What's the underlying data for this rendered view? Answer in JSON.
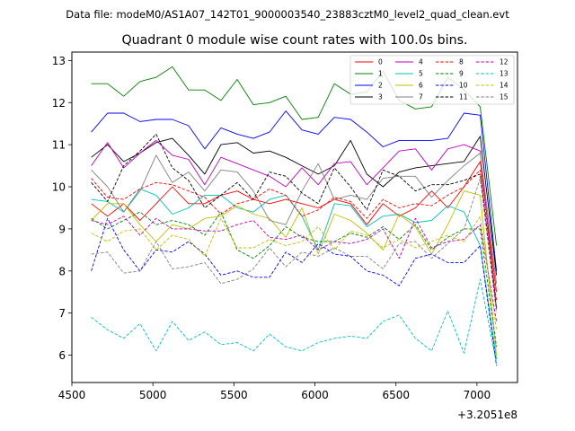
{
  "suptitle": "Data file: modeM0/AS1A07_142T01_9000003540_23883cztM0_level2_quad_clean.evt",
  "chart_data": {
    "type": "line",
    "title": "Quadrant 0 module wise count rates with 100.0s bins.",
    "xlabel": "",
    "ylabel": "",
    "offset_label": "+3.2051e8",
    "xlim": [
      4500,
      7250
    ],
    "ylim": [
      5.35,
      13.2
    ],
    "xticks": [
      4500,
      5000,
      5500,
      6000,
      6500,
      7000
    ],
    "xtick_labels": [
      "4500",
      "5000",
      "5500",
      "6000",
      "6500",
      "7000"
    ],
    "yticks": [
      6,
      7,
      8,
      9,
      10,
      11,
      12,
      13
    ],
    "ytick_labels": [
      "6",
      "7",
      "8",
      "9",
      "10",
      "11",
      "12",
      "13"
    ],
    "legend_position": "top-right",
    "legend_columns": 4,
    "x": [
      4620,
      4720,
      4820,
      4920,
      5020,
      5120,
      5220,
      5320,
      5420,
      5520,
      5620,
      5720,
      5820,
      5920,
      6020,
      6120,
      6220,
      6320,
      6420,
      6520,
      6620,
      6720,
      6820,
      6920,
      7020,
      7120
    ],
    "series": [
      {
        "name": "0",
        "color": "#ff0000",
        "dash": "solid",
        "values": [
          9.6,
          9.3,
          9.6,
          9.2,
          9.6,
          10.0,
          9.6,
          9.6,
          9.8,
          9.9,
          9.7,
          9.6,
          9.7,
          9.6,
          9.5,
          9.7,
          9.6,
          9.1,
          9.6,
          9.3,
          9.5,
          9.9,
          9.5,
          10.0,
          10.6,
          7.5
        ]
      },
      {
        "name": "1",
        "color": "#008000",
        "dash": "solid",
        "values": [
          12.45,
          12.45,
          12.15,
          12.5,
          12.6,
          12.85,
          12.3,
          12.3,
          12.05,
          12.55,
          11.95,
          12.0,
          12.15,
          11.6,
          11.65,
          12.45,
          12.2,
          12.25,
          12.75,
          12.05,
          11.85,
          11.9,
          12.6,
          12.3,
          11.9,
          8.6
        ]
      },
      {
        "name": "2",
        "color": "#0000ff",
        "dash": "solid",
        "values": [
          11.3,
          11.75,
          11.75,
          11.55,
          11.6,
          11.6,
          11.45,
          10.9,
          11.4,
          11.25,
          11.15,
          11.3,
          11.8,
          11.35,
          11.25,
          11.65,
          11.6,
          11.3,
          10.95,
          11.1,
          11.1,
          11.1,
          11.15,
          11.75,
          11.7,
          8.0
        ]
      },
      {
        "name": "3",
        "color": "#000000",
        "dash": "solid",
        "values": [
          10.7,
          11.0,
          10.6,
          10.8,
          11.05,
          11.15,
          10.75,
          10.3,
          11.0,
          11.05,
          10.8,
          10.85,
          10.7,
          10.5,
          10.3,
          10.5,
          11.1,
          10.3,
          10.0,
          10.35,
          10.45,
          10.5,
          10.55,
          10.6,
          11.2,
          7.9
        ]
      },
      {
        "name": "4",
        "color": "#bf00bf",
        "dash": "solid",
        "values": [
          10.5,
          11.05,
          10.45,
          10.8,
          11.1,
          10.75,
          10.65,
          10.05,
          10.7,
          10.55,
          10.4,
          10.25,
          10.0,
          10.45,
          10.05,
          10.55,
          10.6,
          10.05,
          10.45,
          10.85,
          10.9,
          10.4,
          10.9,
          11.0,
          10.85,
          7.1
        ]
      },
      {
        "name": "5",
        "color": "#00bfbf",
        "dash": "solid",
        "values": [
          9.7,
          9.65,
          9.4,
          9.95,
          9.8,
          9.35,
          9.5,
          9.8,
          9.8,
          9.5,
          9.4,
          9.7,
          9.8,
          9.3,
          8.5,
          9.6,
          9.55,
          9.05,
          9.3,
          9.35,
          9.15,
          9.2,
          9.55,
          9.4,
          8.6,
          5.9
        ]
      },
      {
        "name": "6",
        "color": "#bfbf00",
        "dash": "solid",
        "values": [
          9.2,
          9.6,
          9.6,
          9.1,
          8.7,
          9.1,
          9.0,
          9.25,
          9.3,
          9.55,
          9.35,
          9.25,
          8.8,
          9.5,
          8.4,
          9.35,
          9.2,
          8.9,
          8.5,
          9.35,
          9.05,
          8.4,
          9.1,
          9.9,
          9.8,
          6.0
        ]
      },
      {
        "name": "7",
        "color": "#808080",
        "dash": "solid",
        "values": [
          10.4,
          10.0,
          9.4,
          9.9,
          10.75,
          10.1,
          10.35,
          9.9,
          10.4,
          10.35,
          9.9,
          9.2,
          9.1,
          9.9,
          10.55,
          9.7,
          9.8,
          9.7,
          10.2,
          10.25,
          10.25,
          9.75,
          10.15,
          10.5,
          10.8,
          7.7
        ]
      },
      {
        "name": "8",
        "color": "#ff0000",
        "dash": "dashed",
        "values": [
          10.2,
          9.75,
          9.7,
          9.95,
          10.1,
          10.05,
          9.9,
          9.75,
          9.35,
          9.6,
          9.7,
          9.95,
          9.8,
          9.3,
          9.45,
          9.75,
          9.65,
          9.25,
          9.7,
          9.5,
          9.6,
          9.55,
          9.8,
          10.0,
          10.4,
          7.3
        ]
      },
      {
        "name": "9",
        "color": "#008000",
        "dash": "dashed",
        "values": [
          9.25,
          9.0,
          9.2,
          9.4,
          9.1,
          9.2,
          9.1,
          8.85,
          9.4,
          8.5,
          8.3,
          8.6,
          9.05,
          8.8,
          8.7,
          8.7,
          8.9,
          8.8,
          9.05,
          8.75,
          9.1,
          8.5,
          8.8,
          9.0,
          9.0,
          6.2
        ]
      },
      {
        "name": "10",
        "color": "#0000ff",
        "dash": "dashed",
        "values": [
          8.0,
          9.25,
          8.5,
          8.0,
          8.5,
          8.45,
          8.7,
          8.4,
          7.9,
          8.0,
          7.85,
          7.85,
          8.45,
          8.2,
          8.65,
          8.4,
          8.35,
          8.0,
          7.9,
          7.65,
          8.3,
          8.4,
          8.2,
          8.2,
          8.6,
          5.75
        ]
      },
      {
        "name": "11",
        "color": "#000000",
        "dash": "dashed",
        "values": [
          10.1,
          9.65,
          10.5,
          10.85,
          11.25,
          10.45,
          10.15,
          9.5,
          9.8,
          10.1,
          9.7,
          10.35,
          10.25,
          9.85,
          9.6,
          10.45,
          10.0,
          9.45,
          10.4,
          10.25,
          9.9,
          10.05,
          10.05,
          10.15,
          10.3,
          7.1
        ]
      },
      {
        "name": "12",
        "color": "#bf00bf",
        "dash": "dashed",
        "values": [
          9.2,
          9.1,
          9.3,
          8.85,
          9.25,
          9.0,
          9.0,
          8.95,
          8.95,
          9.1,
          9.2,
          8.8,
          8.75,
          8.85,
          8.5,
          8.7,
          8.65,
          8.75,
          9.0,
          8.3,
          9.25,
          8.55,
          8.7,
          8.75,
          9.1,
          6.8
        ]
      },
      {
        "name": "13",
        "color": "#00bfbf",
        "dash": "dashed",
        "values": [
          6.9,
          6.6,
          6.4,
          6.75,
          6.1,
          6.8,
          6.35,
          6.55,
          6.25,
          6.3,
          6.1,
          6.5,
          6.2,
          6.1,
          6.3,
          6.4,
          6.45,
          6.4,
          6.8,
          6.95,
          6.4,
          6.1,
          7.05,
          6.05,
          7.8,
          5.8
        ]
      },
      {
        "name": "14",
        "color": "#bfbf00",
        "dash": "dashed",
        "values": [
          8.9,
          8.7,
          8.95,
          9.0,
          8.5,
          8.85,
          8.75,
          8.35,
          9.25,
          8.55,
          8.55,
          8.75,
          8.6,
          8.7,
          9.05,
          8.5,
          8.95,
          8.85,
          8.55,
          8.75,
          8.55,
          8.7,
          8.85,
          8.7,
          9.3,
          6.6
        ]
      },
      {
        "name": "15",
        "color": "#808080",
        "dash": "dashed",
        "values": [
          8.4,
          8.45,
          7.95,
          8.0,
          8.7,
          8.05,
          8.1,
          8.2,
          7.7,
          7.8,
          8.05,
          8.55,
          8.1,
          8.45,
          8.35,
          8.55,
          8.35,
          8.35,
          8.05,
          8.65,
          8.7,
          8.3,
          8.65,
          9.0,
          10.2,
          7.0
        ]
      }
    ]
  }
}
